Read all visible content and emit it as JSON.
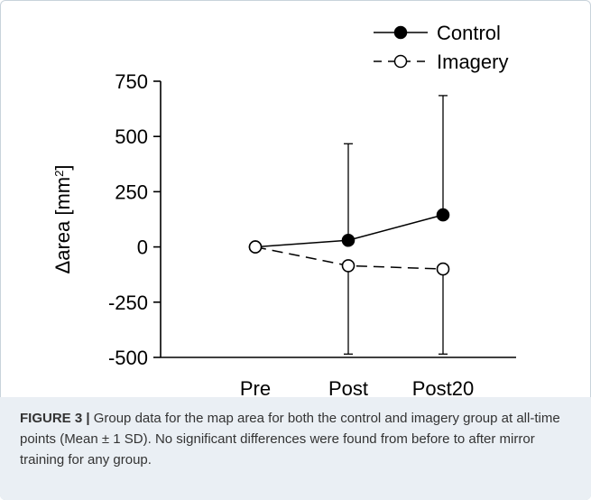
{
  "chart_data": {
    "type": "line",
    "categories": [
      "Pre",
      "Post",
      "Post20"
    ],
    "ylabel": "Δarea [mm²]",
    "ylabel_main": "Δarea [mm",
    "ylabel_sup": "2",
    "ylabel_end": "]",
    "ylim": [
      -500,
      750
    ],
    "yticks": [
      750,
      500,
      250,
      0,
      -250,
      -500
    ],
    "ytick_labels": [
      "750",
      "500",
      "250",
      "0",
      "-250",
      "-500"
    ],
    "grid": false,
    "legend_placement": "top-right",
    "series": [
      {
        "name": "Control",
        "marker": "filled-circle",
        "line_style": "solid",
        "values": [
          0,
          30,
          145
        ],
        "error_up": [
          0,
          437,
          540
        ],
        "error_down": [
          0,
          0,
          0
        ]
      },
      {
        "name": "Imagery",
        "marker": "open-circle",
        "line_style": "dashed",
        "values": [
          0,
          -85,
          -100
        ],
        "error_up": [
          0,
          0,
          0
        ],
        "error_down": [
          0,
          400,
          385
        ]
      }
    ]
  },
  "caption": {
    "label": "FIGURE 3 |",
    "text": " Group data for the map area for both the control and imagery group at all-time points (Mean ± 1 SD). No significant differences were found from before to after mirror training for any group."
  }
}
